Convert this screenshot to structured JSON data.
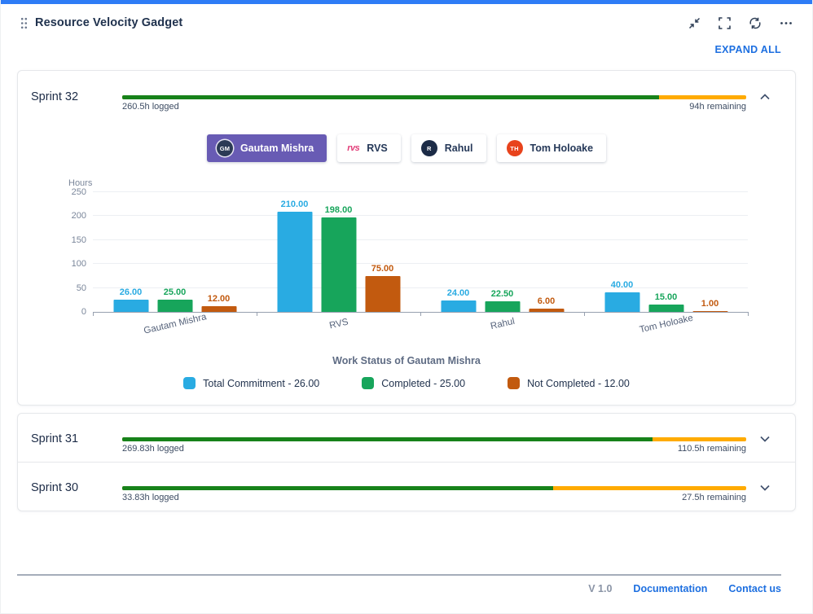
{
  "colors": {
    "topbar": "#2E7CF6",
    "link_blue": "#1D6FE0",
    "progress_green": "#17821A",
    "progress_amber": "#FFAB00",
    "tab_selected_bg": "#685BB4",
    "bar_blue": "#29ABE2",
    "bar_green": "#17A55B",
    "bar_orange": "#C25A0F"
  },
  "header": {
    "title": "Resource Velocity Gadget",
    "expand_all": "EXPAND ALL",
    "icons": [
      "collapse-icon",
      "fullscreen-icon",
      "refresh-icon",
      "more-icon"
    ]
  },
  "sprints": [
    {
      "name": "Sprint 32",
      "logged": "260.5h logged",
      "remaining": "94h remaining",
      "green_pct": 86,
      "expanded": true
    },
    {
      "name": "Sprint 31",
      "logged": "269.83h logged",
      "remaining": "110.5h remaining",
      "green_pct": 85,
      "expanded": false
    },
    {
      "name": "Sprint 30",
      "logged": "33.83h logged",
      "remaining": "27.5h remaining",
      "green_pct": 69,
      "expanded": false
    }
  ],
  "tabs": [
    {
      "label": "Gautam Mishra",
      "avatar_text": "GM",
      "avatar_color": "#2B3A55",
      "avatar_style": "circle",
      "selected": true
    },
    {
      "label": "RVS",
      "avatar_text": "rvs",
      "avatar_color": "#E23E79",
      "avatar_style": "text",
      "selected": false
    },
    {
      "label": "Rahul",
      "avatar_text": "R",
      "avatar_color": "#1C2B46",
      "avatar_style": "circle",
      "selected": false
    },
    {
      "label": "Tom Holoake",
      "avatar_text": "TH",
      "avatar_color": "#E8431C",
      "avatar_style": "circle",
      "selected": false
    }
  ],
  "chart_data": {
    "type": "bar",
    "title": "Work Status of Gautam Mishra",
    "axis_title": "Hours",
    "categories": [
      "Gautam Mishra",
      "RVS",
      "Rahul",
      "Tom Holoake"
    ],
    "series": [
      {
        "name": "Total Commitment",
        "color": "#29ABE2",
        "values": [
          26,
          210,
          24,
          40
        ]
      },
      {
        "name": "Completed",
        "color": "#17A55B",
        "values": [
          25,
          198,
          22.5,
          15
        ]
      },
      {
        "name": "Not Completed",
        "color": "#C25A0F",
        "values": [
          12,
          75,
          6,
          1
        ]
      }
    ],
    "ylim": [
      0,
      250
    ],
    "yticks": [
      0,
      50,
      100,
      150,
      200,
      250
    ],
    "grid": true,
    "legend_position": "bottom",
    "legend": [
      {
        "label": "Total Commitment - 26.00",
        "color": "#29ABE2"
      },
      {
        "label": "Completed  - 25.00",
        "color": "#17A55B"
      },
      {
        "label": "Not Completed  - 12.00",
        "color": "#C25A0F"
      }
    ]
  },
  "footer": {
    "version": "V 1.0",
    "links": [
      "Documentation",
      "Contact us"
    ]
  }
}
